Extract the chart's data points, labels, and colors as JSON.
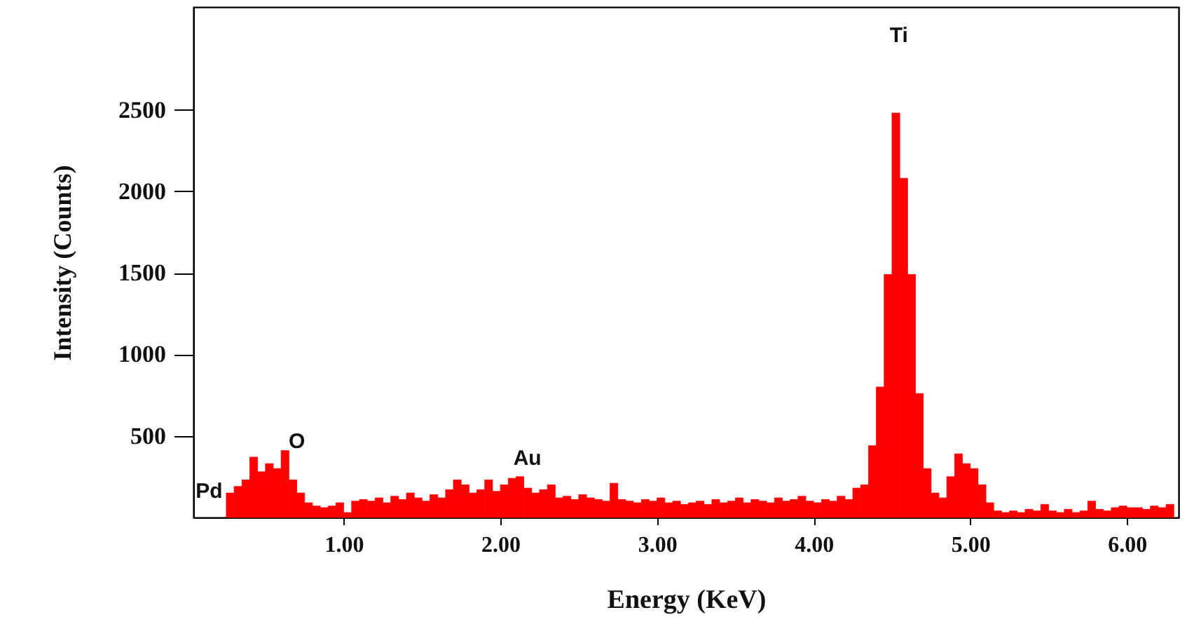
{
  "chart_data": {
    "type": "histogram",
    "xlabel": "Energy (KeV)",
    "ylabel": "Intensity (Counts)",
    "color": "#ff0000",
    "bins": [
      0.25,
      0.3,
      0.35,
      0.4,
      0.45,
      0.5,
      0.55,
      0.6,
      0.65,
      0.7,
      0.75,
      0.8,
      0.85,
      0.9,
      0.95,
      1.0,
      1.05,
      1.1,
      1.15,
      1.2,
      1.25,
      1.3,
      1.35,
      1.4,
      1.45,
      1.5,
      1.55,
      1.6,
      1.65,
      1.7,
      1.75,
      1.8,
      1.85,
      1.9,
      1.95,
      2.0,
      2.05,
      2.1,
      2.15,
      2.2,
      2.25,
      2.3,
      2.35,
      2.4,
      2.45,
      2.5,
      2.55,
      2.6,
      2.65,
      2.7,
      2.75,
      2.8,
      2.85,
      2.9,
      2.95,
      3.0,
      3.05,
      3.1,
      3.15,
      3.2,
      3.25,
      3.3,
      3.35,
      3.4,
      3.45,
      3.5,
      3.55,
      3.6,
      3.65,
      3.7,
      3.75,
      3.8,
      3.85,
      3.9,
      3.95,
      4.0,
      4.05,
      4.1,
      4.15,
      4.2,
      4.25,
      4.3,
      4.35,
      4.4,
      4.45,
      4.5,
      4.55,
      4.6,
      4.65,
      4.7,
      4.75,
      4.8,
      4.85,
      4.9,
      4.95,
      5.0,
      5.05,
      5.1,
      5.15,
      5.2,
      5.25,
      5.3,
      5.35,
      5.4,
      5.45,
      5.5,
      5.55,
      5.6,
      5.65,
      5.7,
      5.75,
      5.8,
      5.85,
      5.9,
      5.95,
      6.0,
      6.05,
      6.1,
      6.15,
      6.2,
      6.25,
      6.3
    ],
    "values": [
      150,
      190,
      230,
      370,
      280,
      330,
      300,
      410,
      230,
      150,
      90,
      70,
      60,
      70,
      90,
      30,
      100,
      110,
      100,
      120,
      90,
      130,
      110,
      150,
      120,
      100,
      140,
      120,
      170,
      230,
      200,
      150,
      170,
      230,
      160,
      200,
      240,
      250,
      180,
      150,
      170,
      200,
      120,
      130,
      110,
      140,
      120,
      110,
      100,
      210,
      110,
      100,
      90,
      110,
      100,
      120,
      90,
      100,
      80,
      90,
      100,
      80,
      110,
      90,
      100,
      120,
      90,
      110,
      100,
      90,
      120,
      100,
      110,
      130,
      100,
      90,
      110,
      100,
      130,
      110,
      180,
      200,
      440,
      800,
      1490,
      2480,
      2080,
      1490,
      760,
      300,
      150,
      120,
      250,
      390,
      330,
      300,
      200,
      90,
      40,
      30,
      40,
      30,
      50,
      40,
      80,
      40,
      30,
      50,
      30,
      40,
      100,
      50,
      40,
      60,
      70,
      60,
      60,
      50,
      70,
      60,
      80
    ],
    "xlim": [
      0.04,
      6.33
    ],
    "ylim": [
      0,
      3130
    ],
    "xticks": [
      {
        "value": 1,
        "label": "1.00"
      },
      {
        "value": 2,
        "label": "2.00"
      },
      {
        "value": 3,
        "label": "3.00"
      },
      {
        "value": 4,
        "label": "4.00"
      },
      {
        "value": 5,
        "label": "5.00"
      },
      {
        "value": 6,
        "label": "6.00"
      }
    ],
    "yticks": [
      500,
      1000,
      1500,
      2000,
      2500
    ],
    "annotations": [
      "Ti",
      "O",
      "Pd",
      "Au"
    ]
  }
}
